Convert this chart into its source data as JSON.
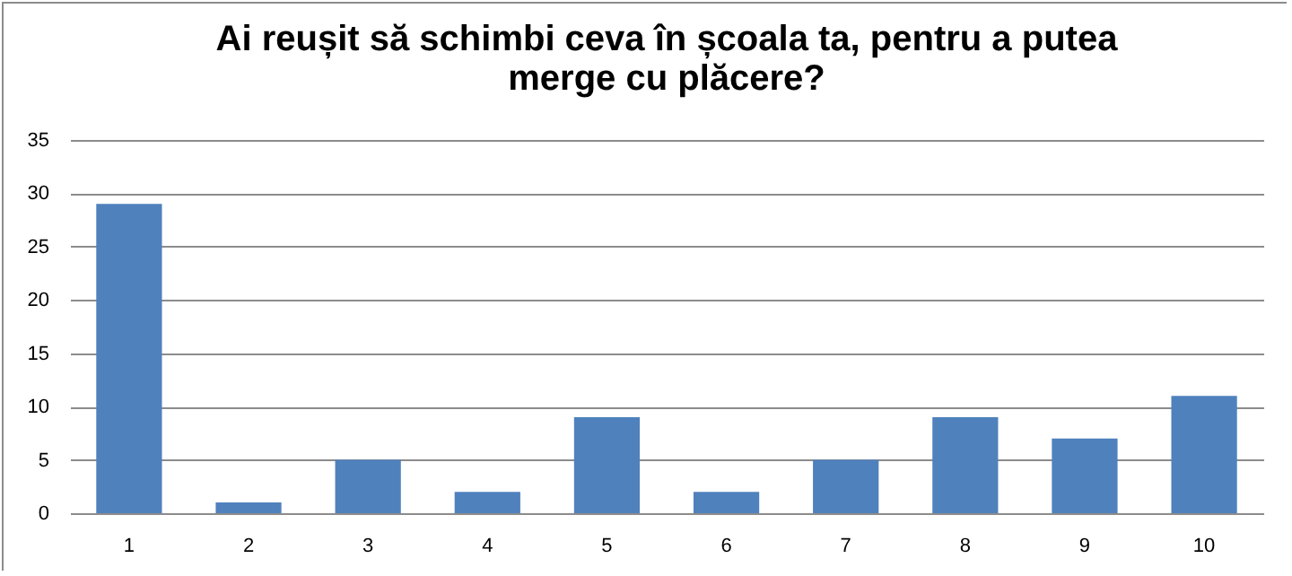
{
  "chart_data": {
    "type": "bar",
    "title": "Ai reușit să schimbi ceva în școala ta, pentru a putea merge cu plăcere?",
    "categories": [
      "1",
      "2",
      "3",
      "4",
      "5",
      "6",
      "7",
      "8",
      "9",
      "10"
    ],
    "values": [
      29,
      1,
      5,
      2,
      9,
      2,
      5,
      9,
      7,
      11
    ],
    "color": "#4f81bd",
    "ylim": [
      0,
      35
    ],
    "yticks": [
      0,
      5,
      10,
      15,
      20,
      25,
      30,
      35
    ],
    "grid": "y"
  }
}
